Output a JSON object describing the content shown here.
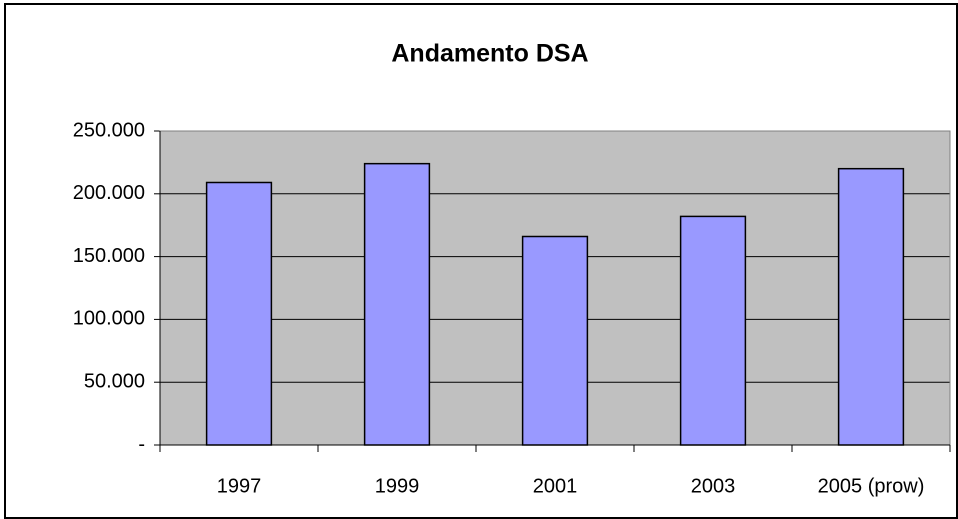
{
  "chart_data": {
    "type": "bar",
    "title": "Andamento DSA",
    "categories": [
      "1997",
      "1999",
      "2001",
      "2003",
      "2005 (prow)"
    ],
    "values": [
      209000,
      224000,
      166000,
      182000,
      220000
    ],
    "color": "#9999ff",
    "ylim": [
      0,
      250000
    ],
    "yticks": [
      {
        "value": 0,
        "label": "-"
      },
      {
        "value": 50000,
        "label": "50.000"
      },
      {
        "value": 100000,
        "label": "100.000"
      },
      {
        "value": 150000,
        "label": "150.000"
      },
      {
        "value": 200000,
        "label": "200.000"
      },
      {
        "value": 250000,
        "label": "250.000"
      }
    ],
    "grid": true
  }
}
